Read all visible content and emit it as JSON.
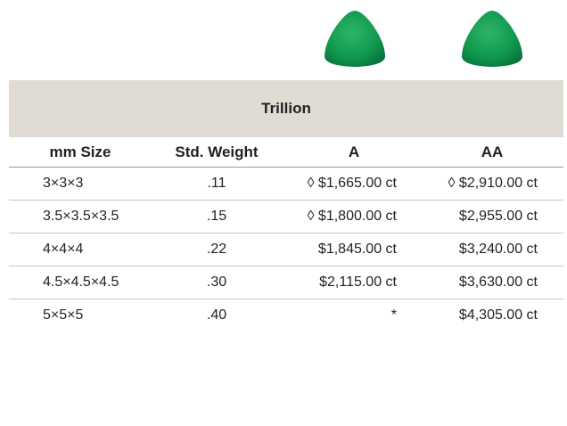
{
  "table": {
    "title": "Trillion",
    "header": [
      "mm Size",
      "Std. Weight",
      "A",
      "AA"
    ],
    "rows": [
      [
        "3×3×3",
        ".11",
        "◊ $1,665.00 ct",
        "◊ $2,910.00 ct"
      ],
      [
        "3.5×3.5×3.5",
        ".15",
        "◊ $1,800.00 ct",
        "$2,955.00 ct"
      ],
      [
        "4×4×4",
        ".22",
        "$1,845.00 ct",
        "$3,240.00 ct"
      ],
      [
        "4.5×4.5×4.5",
        ".30",
        "$2,115.00 ct",
        "$3,630.00 ct"
      ],
      [
        "5×5×5",
        ".40",
        "*",
        "$4,305.00 ct"
      ]
    ]
  }
}
